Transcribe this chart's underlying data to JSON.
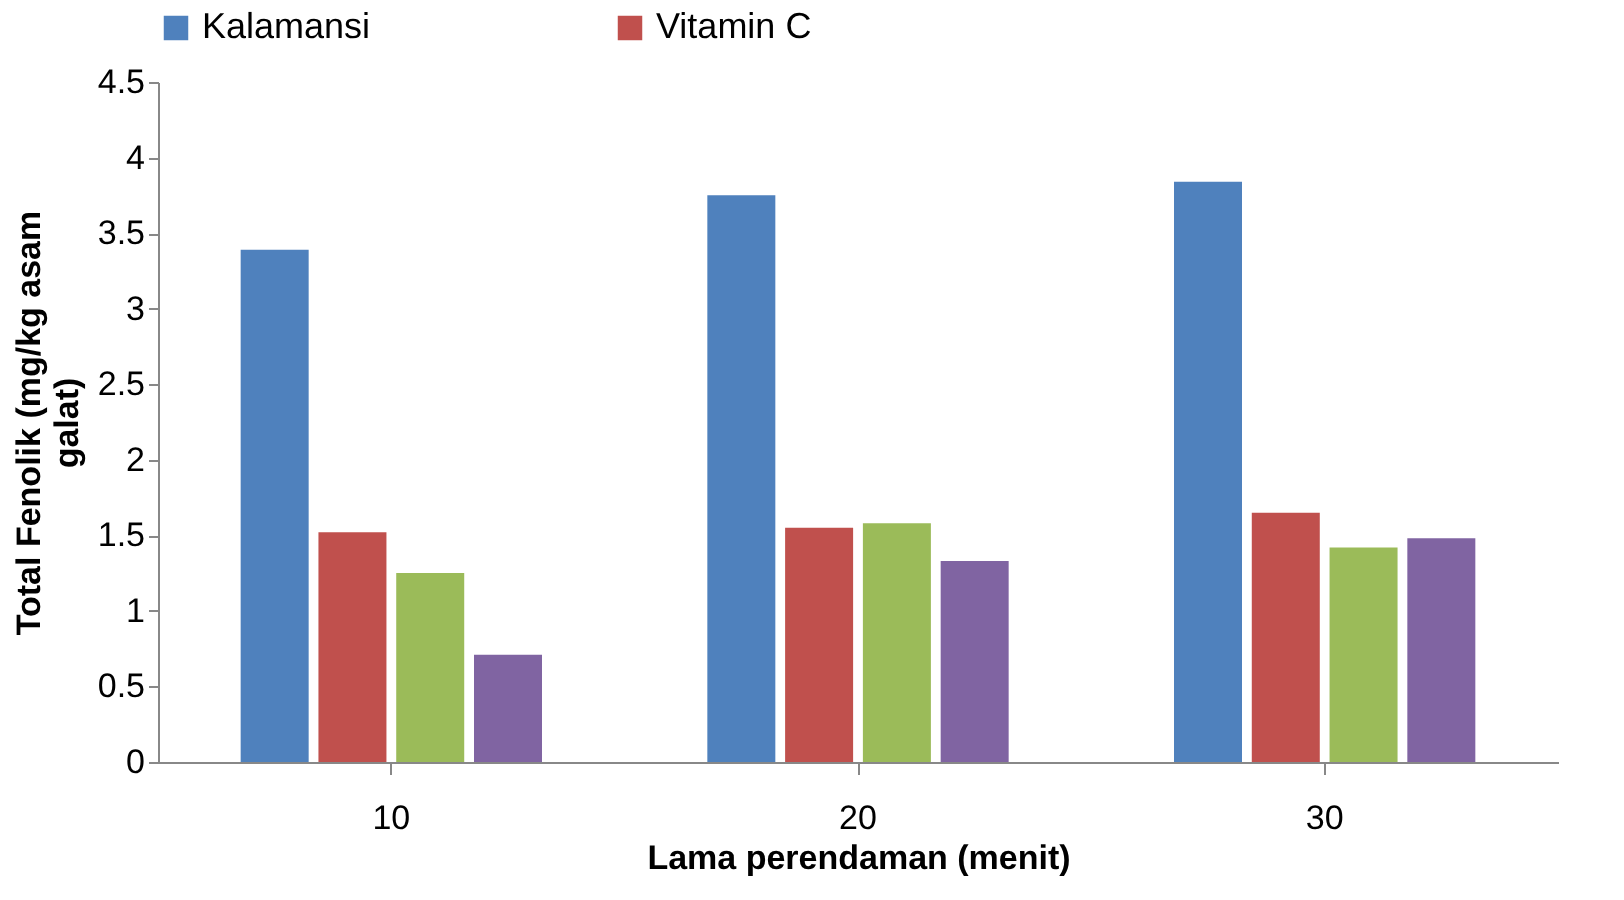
{
  "chart_data": {
    "type": "bar",
    "xlabel": "Lama perendaman (menit)",
    "ylabel": "Total Fenolik (mg/kg asam galat)",
    "categories": [
      "10",
      "20",
      "30"
    ],
    "series": [
      {
        "name": "Kalamansi",
        "color": "#4f81bd",
        "values": [
          3.39,
          3.75,
          3.84
        ]
      },
      {
        "name": "Vitamin C",
        "color": "#c0504d",
        "values": [
          1.52,
          1.55,
          1.65
        ]
      },
      {
        "color": "#9bbb59",
        "values": [
          1.25,
          1.58,
          1.42
        ]
      },
      {
        "color": "#8064a2",
        "values": [
          0.71,
          1.33,
          1.48
        ]
      }
    ],
    "ylim": [
      0,
      4.5
    ],
    "yticks": [
      0,
      0.5,
      1,
      1.5,
      2,
      2.5,
      3,
      3.5,
      4,
      4.5
    ],
    "grid": false,
    "legend": "top"
  }
}
